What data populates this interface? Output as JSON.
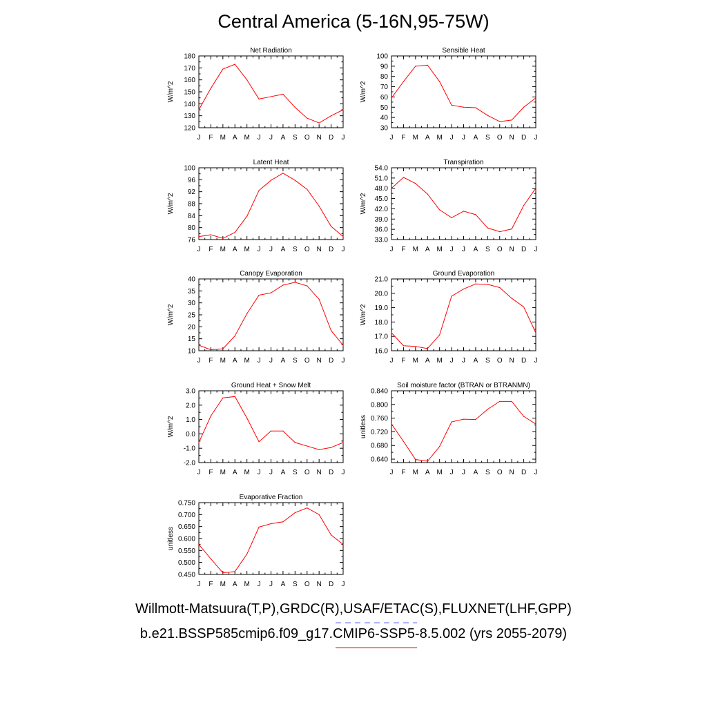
{
  "title": "Central America (5-16N,95-75W)",
  "legend": {
    "observations": "Willmott-Matsuura(T,P),GRDC(R),USAF/ETAC(S),FLUXNET(LHF,GPP)",
    "model": "b.e21.BSSP585cmip6.f09_g17.CMIP6-SSP5-8.5.002 (yrs 2055-2079)",
    "observations_color": "#6666ff",
    "model_color": "#ff0000"
  },
  "chart_data": [
    {
      "type": "line",
      "title": "Net Radiation",
      "ylabel": "W/m^2",
      "categories": [
        "J",
        "F",
        "M",
        "A",
        "M",
        "J",
        "J",
        "A",
        "S",
        "O",
        "N",
        "D",
        "J"
      ],
      "ylim": [
        120,
        180
      ],
      "yticks": [
        120,
        130,
        140,
        150,
        160,
        170,
        180
      ],
      "ytick_labels": [
        "120",
        "130",
        "140",
        "150",
        "160",
        "170",
        "180"
      ],
      "series": [
        {
          "color": "#ff0000",
          "values": [
            135,
            153,
            169,
            173,
            160,
            144,
            146,
            148,
            137,
            128,
            124,
            130,
            135
          ]
        }
      ]
    },
    {
      "type": "line",
      "title": "Sensible Heat",
      "ylabel": "W/m^2",
      "categories": [
        "J",
        "F",
        "M",
        "A",
        "M",
        "J",
        "J",
        "A",
        "S",
        "O",
        "N",
        "D",
        "J"
      ],
      "ylim": [
        30,
        100
      ],
      "yticks": [
        30,
        40,
        50,
        60,
        70,
        80,
        90,
        100
      ],
      "ytick_labels": [
        "30",
        "40",
        "50",
        "60",
        "70",
        "80",
        "90",
        "100"
      ],
      "series": [
        {
          "color": "#ff0000",
          "values": [
            59,
            75,
            90,
            91,
            75,
            52,
            50,
            49.5,
            42,
            36,
            37.5,
            50,
            59
          ]
        }
      ]
    },
    {
      "type": "line",
      "title": "Latent Heat",
      "ylabel": "W/m^2",
      "categories": [
        "J",
        "F",
        "M",
        "A",
        "M",
        "J",
        "J",
        "A",
        "S",
        "O",
        "N",
        "D",
        "J"
      ],
      "ylim": [
        76,
        100
      ],
      "yticks": [
        76,
        80,
        84,
        88,
        92,
        96,
        100
      ],
      "ytick_labels": [
        "76",
        "80",
        "84",
        "88",
        "92",
        "96",
        "100"
      ],
      "series": [
        {
          "color": "#ff0000",
          "values": [
            77,
            77.6,
            76.4,
            78.4,
            83.8,
            92.4,
            95.8,
            98.2,
            95.8,
            92.8,
            87.2,
            80.4,
            77
          ]
        }
      ]
    },
    {
      "type": "line",
      "title": "Transpiration",
      "ylabel": "W/m^2",
      "categories": [
        "J",
        "F",
        "M",
        "A",
        "M",
        "J",
        "J",
        "A",
        "S",
        "O",
        "N",
        "D",
        "J"
      ],
      "ylim": [
        33,
        54
      ],
      "yticks": [
        33,
        36,
        39,
        42,
        45,
        48,
        51,
        54
      ],
      "ytick_labels": [
        "33.0",
        "36.0",
        "39.0",
        "42.0",
        "45.0",
        "48.0",
        "51.0",
        "54.0"
      ],
      "series": [
        {
          "color": "#ff0000",
          "values": [
            48,
            51.2,
            49.4,
            46.3,
            41.7,
            39.4,
            41.3,
            40.3,
            36.4,
            35.3,
            36.1,
            43,
            48
          ]
        }
      ]
    },
    {
      "type": "line",
      "title": "Canopy Evaporation",
      "ylabel": "W/m^2",
      "categories": [
        "J",
        "F",
        "M",
        "A",
        "M",
        "J",
        "J",
        "A",
        "S",
        "O",
        "N",
        "D",
        "J"
      ],
      "ylim": [
        10,
        40
      ],
      "yticks": [
        10,
        15,
        20,
        25,
        30,
        35,
        40
      ],
      "ytick_labels": [
        "10",
        "15",
        "20",
        "25",
        "30",
        "35",
        "40"
      ],
      "series": [
        {
          "color": "#ff0000",
          "values": [
            12.3,
            10.4,
            10.8,
            16.2,
            25.5,
            33.2,
            34.2,
            37.4,
            38.6,
            37.1,
            31.5,
            18.4,
            12.3
          ]
        }
      ]
    },
    {
      "type": "line",
      "title": "Ground Evaporation",
      "ylabel": "W/m^2",
      "categories": [
        "J",
        "F",
        "M",
        "A",
        "M",
        "J",
        "J",
        "A",
        "S",
        "O",
        "N",
        "D",
        "J"
      ],
      "ylim": [
        16,
        21
      ],
      "yticks": [
        16,
        17,
        18,
        19,
        20,
        21
      ],
      "ytick_labels": [
        "16.0",
        "17.0",
        "18.0",
        "19.0",
        "20.0",
        "21.0"
      ],
      "series": [
        {
          "color": "#ff0000",
          "values": [
            17.25,
            16.35,
            16.3,
            16.15,
            17.1,
            19.8,
            20.3,
            20.65,
            20.62,
            20.4,
            19.65,
            19.05,
            17.25
          ]
        }
      ]
    },
    {
      "type": "line",
      "title": "Ground Heat + Snow Melt",
      "ylabel": "W/m^2",
      "categories": [
        "J",
        "F",
        "M",
        "A",
        "M",
        "J",
        "J",
        "A",
        "S",
        "O",
        "N",
        "D",
        "J"
      ],
      "ylim": [
        -2,
        3
      ],
      "yticks": [
        -2,
        -1,
        0,
        1,
        2,
        3
      ],
      "ytick_labels": [
        "-2.0",
        "-1.0",
        "0.0",
        "1.0",
        "2.0",
        "3.0"
      ],
      "series": [
        {
          "color": "#ff0000",
          "values": [
            -0.6,
            1.25,
            2.5,
            2.6,
            1.1,
            -0.55,
            0.2,
            0.2,
            -0.6,
            -0.85,
            -1.1,
            -0.95,
            -0.6
          ]
        }
      ]
    },
    {
      "type": "line",
      "title": "Soil moisture factor (BTRAN or BTRANMN)",
      "ylabel": "unitless",
      "categories": [
        "J",
        "F",
        "M",
        "A",
        "M",
        "J",
        "J",
        "A",
        "S",
        "O",
        "N",
        "D",
        "J"
      ],
      "ylim": [
        0.63,
        0.84
      ],
      "yticks": [
        0.64,
        0.68,
        0.72,
        0.76,
        0.8,
        0.84
      ],
      "ytick_labels": [
        "0.640",
        "0.680",
        "0.720",
        "0.760",
        "0.800",
        "0.840"
      ],
      "series": [
        {
          "color": "#ff0000",
          "values": [
            0.743,
            0.692,
            0.639,
            0.634,
            0.677,
            0.749,
            0.757,
            0.756,
            0.786,
            0.809,
            0.809,
            0.765,
            0.743
          ]
        }
      ]
    },
    {
      "type": "line",
      "title": "Evaporative Fraction",
      "ylabel": "unitless",
      "categories": [
        "J",
        "F",
        "M",
        "A",
        "M",
        "J",
        "J",
        "A",
        "S",
        "O",
        "N",
        "D",
        "J"
      ],
      "ylim": [
        0.45,
        0.75
      ],
      "yticks": [
        0.45,
        0.5,
        0.55,
        0.6,
        0.65,
        0.7,
        0.75
      ],
      "ytick_labels": [
        "0.450",
        "0.500",
        "0.550",
        "0.600",
        "0.650",
        "0.700",
        "0.750"
      ],
      "series": [
        {
          "color": "#ff0000",
          "values": [
            0.575,
            0.515,
            0.457,
            0.462,
            0.535,
            0.648,
            0.662,
            0.67,
            0.708,
            0.728,
            0.7,
            0.615,
            0.575
          ]
        }
      ]
    }
  ]
}
